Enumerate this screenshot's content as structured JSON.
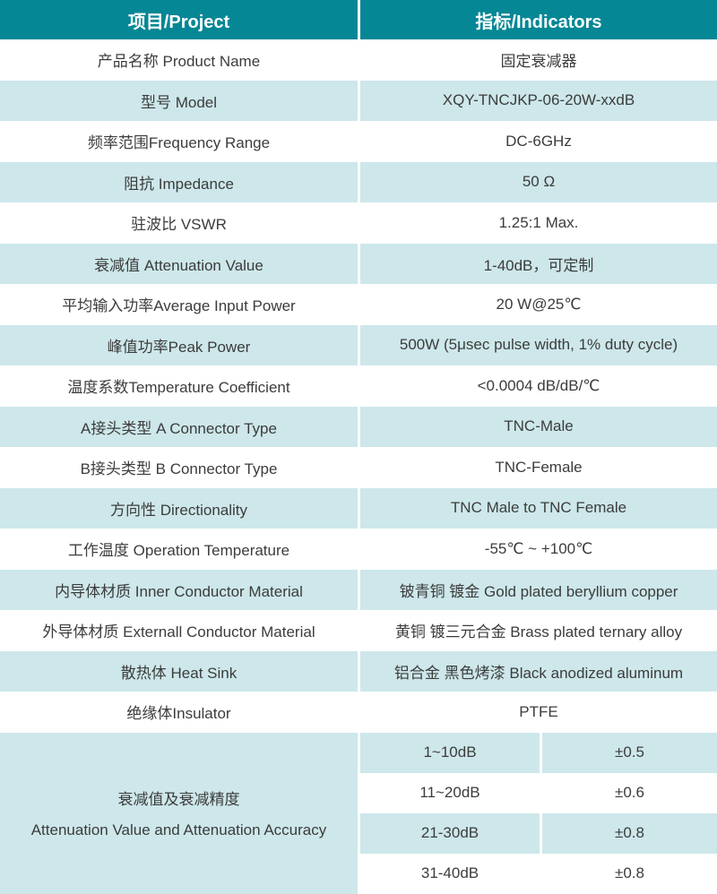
{
  "colors": {
    "header_bg": "#058795",
    "header_text": "#FFFFFF",
    "row_alt_bg": "#CDE7EA",
    "row_bg": "#FFFFFF",
    "body_text": "#3C3C3C"
  },
  "table": {
    "header": {
      "project": "项目/Project",
      "indicators": "指标/Indicators"
    },
    "rows": [
      {
        "label": "产品名称 Product Name",
        "value": "固定衰减器"
      },
      {
        "label": "型号 Model",
        "value": "XQY-TNCJKP-06-20W-xxdB"
      },
      {
        "label": "频率范围Frequency Range",
        "value": "DC-6GHz"
      },
      {
        "label": "阻抗 Impedance",
        "value": "50 Ω"
      },
      {
        "label": "驻波比 VSWR",
        "value": "1.25:1 Max."
      },
      {
        "label": "衰减值 Attenuation Value",
        "value": "1-40dB，可定制"
      },
      {
        "label": "平均输入功率Average Input Power",
        "value": "20 W@25℃"
      },
      {
        "label": "峰值功率Peak Power",
        "value": "500W (5μsec pulse width, 1% duty cycle)"
      },
      {
        "label": "温度系数Temperature Coefficient",
        "value": "<0.0004 dB/dB/℃"
      },
      {
        "label": "A接头类型 A Connector Type",
        "value": "TNC-Male"
      },
      {
        "label": "B接头类型 B Connector Type",
        "value": "TNC-Female"
      },
      {
        "label": "方向性 Directionality",
        "value": "TNC Male to TNC Female"
      },
      {
        "label": "工作温度 Operation Temperature",
        "value": "-55℃ ~ +100℃"
      },
      {
        "label": "内导体材质 Inner Conductor Material",
        "value": "铍青铜 镀金 Gold plated beryllium copper"
      },
      {
        "label": "外导体材质 Externall Conductor Material",
        "value": "黄铜 镀三元合金 Brass plated ternary alloy"
      },
      {
        "label": "散热体 Heat Sink",
        "value": "铝合金 黑色烤漆 Black anodized aluminum"
      },
      {
        "label": "绝缘体Insulator",
        "value": "PTFE"
      }
    ],
    "attenuation_accuracy": {
      "label_cn": "衰减值及衰减精度",
      "label_en": "Attenuation Value and Attenuation Accuracy",
      "entries": [
        {
          "range": "1~10dB",
          "accuracy": "±0.5"
        },
        {
          "range": "11~20dB",
          "accuracy": "±0.6"
        },
        {
          "range": "21-30dB",
          "accuracy": "±0.8"
        },
        {
          "range": "31-40dB",
          "accuracy": "±0.8"
        }
      ]
    }
  }
}
